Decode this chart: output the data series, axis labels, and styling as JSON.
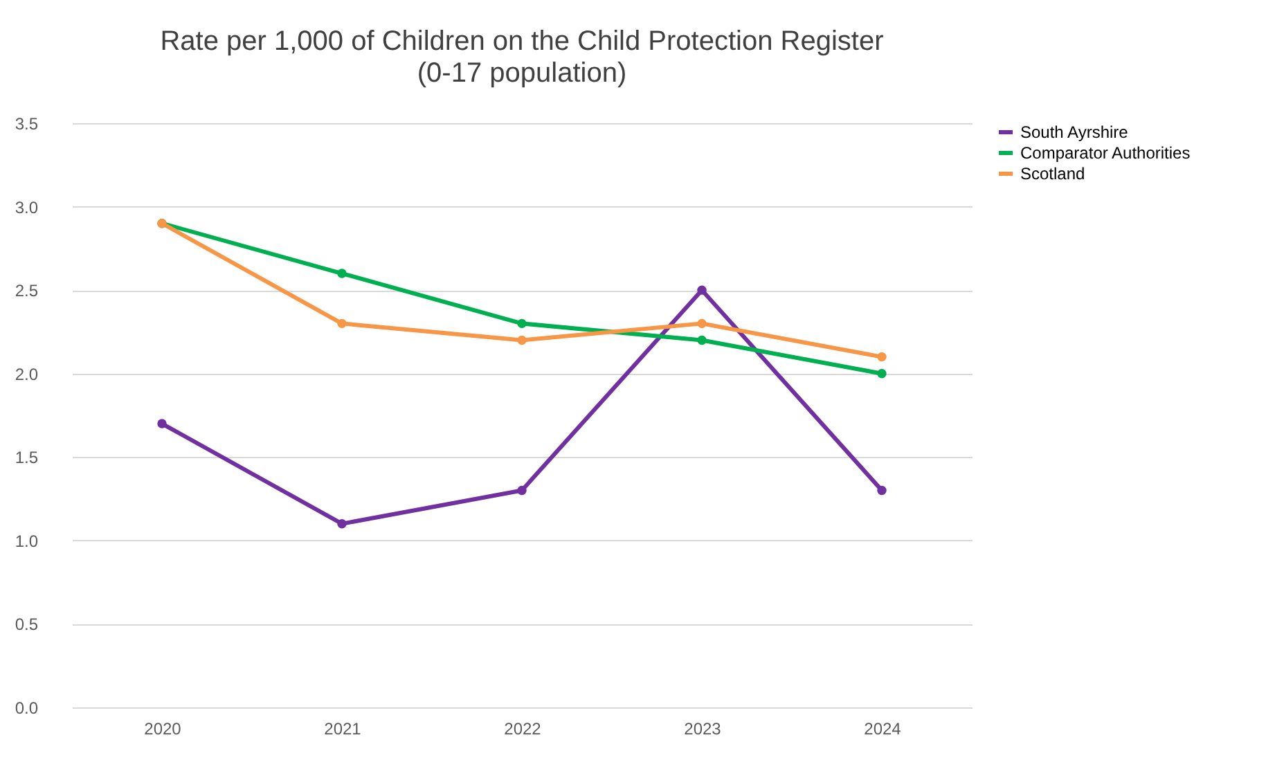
{
  "chart_data": {
    "type": "line",
    "title": "Rate per 1,000 of Children on the Child Protection Register",
    "subtitle": "(0-17 population)",
    "categories": [
      "2020",
      "2021",
      "2022",
      "2023",
      "2024"
    ],
    "series": [
      {
        "name": "South Ayrshire",
        "color": "#7030a0",
        "values": [
          1.7,
          1.1,
          1.3,
          2.5,
          1.3
        ]
      },
      {
        "name": "Comparator Authorities",
        "color": "#00b050",
        "values": [
          2.9,
          2.6,
          2.3,
          2.2,
          2.0
        ]
      },
      {
        "name": "Scotland",
        "color": "#f79646",
        "values": [
          2.9,
          2.3,
          2.2,
          2.3,
          2.1
        ]
      }
    ],
    "ylim": [
      0,
      3.5
    ],
    "yticks": [
      {
        "value": 0,
        "label": "0.0"
      },
      0.5,
      {
        "value": 1,
        "label": "1.0"
      },
      1.5,
      {
        "value": 2,
        "label": "2.0"
      },
      2.5,
      {
        "value": 3,
        "label": "3.0"
      },
      3.5
    ],
    "grid": "y",
    "legend": "right",
    "marker": "circle",
    "line_style": "solid"
  }
}
